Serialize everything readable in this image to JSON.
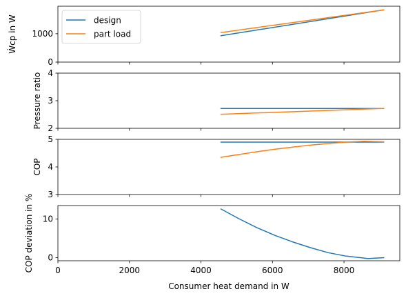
{
  "chart_data": [
    {
      "type": "line",
      "ylabel": "Ẇcp in W",
      "xlim": [
        0,
        9560
      ],
      "ylim": [
        0,
        1970
      ],
      "yticks": [
        0,
        1000
      ],
      "legend": {
        "placement": "top-left",
        "entries": [
          "design",
          "part load"
        ]
      },
      "series": [
        {
          "name": "design",
          "color": "#1f77b4",
          "x": [
            4560,
            9110
          ],
          "y": [
            930,
            1840
          ]
        },
        {
          "name": "part load",
          "color": "#ff7f0e",
          "x": [
            4560,
            9110
          ],
          "y": [
            1040,
            1840
          ]
        }
      ]
    },
    {
      "type": "line",
      "ylabel": "Pressure ratio",
      "xlim": [
        0,
        9560
      ],
      "ylim": [
        2,
        4
      ],
      "yticks": [
        2,
        3,
        4
      ],
      "series": [
        {
          "name": "design",
          "color": "#1f77b4",
          "x": [
            4560,
            9110
          ],
          "y": [
            2.72,
            2.72
          ]
        },
        {
          "name": "part load",
          "color": "#ff7f0e",
          "x": [
            4560,
            9110
          ],
          "y": [
            2.51,
            2.72
          ]
        }
      ]
    },
    {
      "type": "line",
      "ylabel": "COP",
      "xlim": [
        0,
        9560
      ],
      "ylim": [
        3,
        5
      ],
      "yticks": [
        3,
        4,
        5
      ],
      "series": [
        {
          "name": "design",
          "color": "#1f77b4",
          "x": [
            4560,
            9110
          ],
          "y": [
            4.9,
            4.9
          ]
        },
        {
          "name": "part load",
          "color": "#ff7f0e",
          "x": [
            4560,
            5060,
            5560,
            6060,
            6560,
            7060,
            7560,
            8060,
            8560,
            9110
          ],
          "y": [
            4.35,
            4.45,
            4.55,
            4.64,
            4.72,
            4.79,
            4.85,
            4.9,
            4.93,
            4.91
          ]
        }
      ]
    },
    {
      "type": "line",
      "ylabel": "COP deviation in %",
      "xlabel": "Consumer heat demand in W",
      "xlim": [
        0,
        9560
      ],
      "ylim": [
        -0.8,
        13.5
      ],
      "yticks": [
        0,
        10
      ],
      "xticks": [
        0,
        2000,
        4000,
        6000,
        8000
      ],
      "series": [
        {
          "name": "design",
          "color": "#1f77b4",
          "x": [
            4560,
            5060,
            5560,
            6060,
            6560,
            7060,
            7560,
            8060,
            8560,
            8660,
            9110
          ],
          "y": [
            12.6,
            10.1,
            7.8,
            5.8,
            4.1,
            2.6,
            1.3,
            0.4,
            -0.1,
            -0.25,
            0.0
          ]
        }
      ]
    }
  ]
}
